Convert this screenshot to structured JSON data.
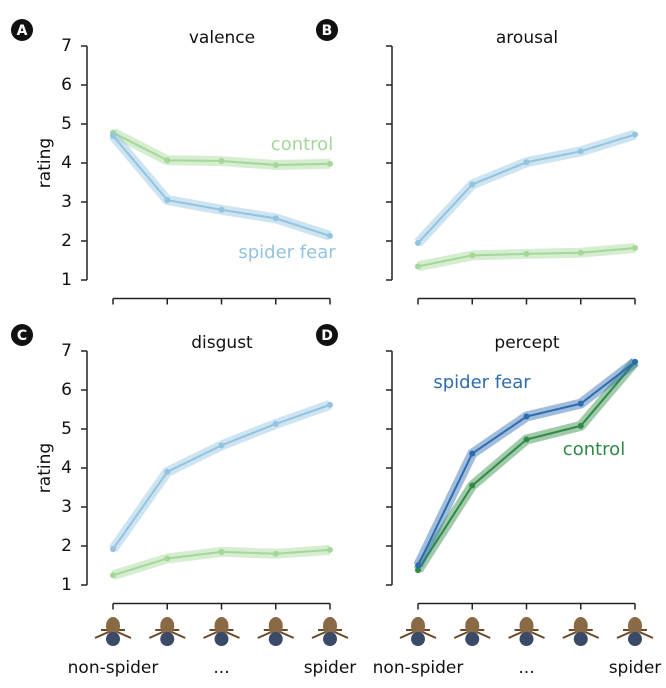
{
  "chart_data": [
    {
      "type": "line",
      "letter": "A",
      "title": "valence",
      "ylabel": "rating",
      "ylim": [
        0.5,
        7.5
      ],
      "yticks": [
        1,
        2,
        3,
        4,
        5,
        6,
        7
      ],
      "series": [
        {
          "name": "control",
          "color": "#a3d898",
          "values": [
            4.78,
            4.07,
            4.05,
            3.95,
            3.98
          ]
        },
        {
          "name": "spider fear",
          "color": "#92c3e0",
          "values": [
            4.7,
            3.05,
            2.8,
            2.58,
            2.13
          ]
        }
      ]
    },
    {
      "type": "line",
      "letter": "B",
      "title": "arousal",
      "ylim": [
        0.5,
        7.5
      ],
      "yticks": [
        1,
        2,
        3,
        4,
        5,
        6,
        7
      ],
      "series": [
        {
          "color": "#a3d898",
          "values": [
            1.35,
            1.63,
            1.67,
            1.7,
            1.82
          ]
        },
        {
          "color": "#92c3e0",
          "values": [
            1.95,
            3.45,
            4.02,
            4.3,
            4.73
          ]
        }
      ]
    },
    {
      "type": "line",
      "letter": "C",
      "title": "disgust",
      "ylabel": "rating",
      "ylim": [
        0.5,
        7.5
      ],
      "yticks": [
        1,
        2,
        3,
        4,
        5,
        6,
        7
      ],
      "categories": [
        "non-spider",
        null,
        "...",
        null,
        "spider"
      ],
      "series": [
        {
          "color": "#a3d898",
          "values": [
            1.25,
            1.68,
            1.85,
            1.8,
            1.9
          ]
        },
        {
          "color": "#92c3e0",
          "values": [
            1.92,
            3.9,
            4.58,
            5.13,
            5.62
          ]
        }
      ]
    },
    {
      "type": "line",
      "letter": "D",
      "title": "percept",
      "ylim": [
        0.5,
        7.5
      ],
      "yticks": [
        1,
        2,
        3,
        4,
        5,
        6,
        7
      ],
      "categories": [
        "non-spider",
        null,
        "...",
        null,
        "spider"
      ],
      "series": [
        {
          "name": "control",
          "color": "#2e8a45",
          "values": [
            1.38,
            3.55,
            4.73,
            5.08,
            6.72
          ]
        },
        {
          "name": "spider fear",
          "color": "#2e6cb0",
          "values": [
            1.5,
            4.37,
            5.32,
            5.65,
            6.72
          ]
        }
      ]
    }
  ]
}
